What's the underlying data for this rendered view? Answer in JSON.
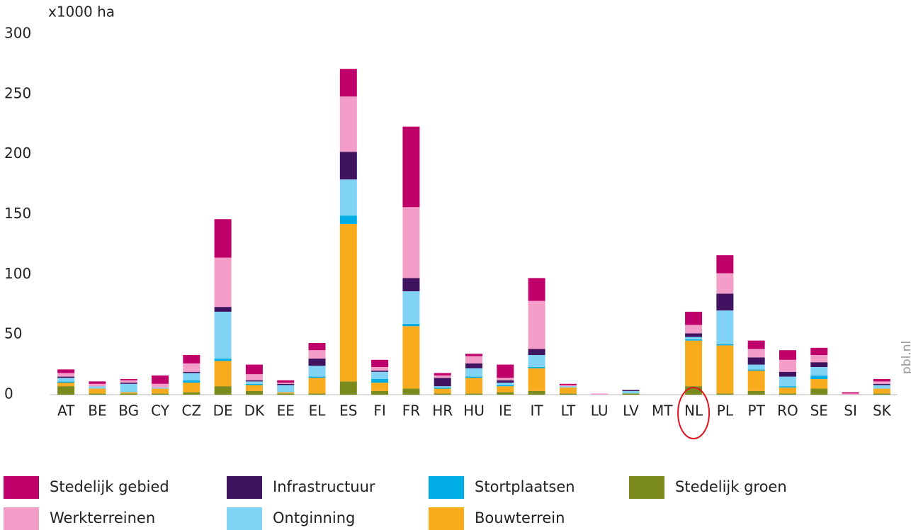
{
  "chart_data": {
    "type": "stacked_bar",
    "y_label": "x1000 ha",
    "source": "pbl.nl",
    "categories": [
      "AT",
      "BE",
      "BG",
      "CY",
      "CZ",
      "DE",
      "DK",
      "EE",
      "EL",
      "ES",
      "FI",
      "FR",
      "HR",
      "HU",
      "IE",
      "IT",
      "LT",
      "LU",
      "LV",
      "MT",
      "NL",
      "PL",
      "PT",
      "RO",
      "SE",
      "SI",
      "SK"
    ],
    "ylim": [
      0,
      300
    ],
    "yticks": [
      0,
      50,
      100,
      150,
      200,
      250,
      300
    ],
    "grid": false,
    "series": [
      {
        "name": "Stedelijk gebied",
        "color": "#c0006a",
        "values": [
          3,
          2,
          1,
          7,
          7,
          32,
          8,
          2,
          6,
          23,
          6,
          67,
          2,
          2,
          11,
          19,
          1,
          0,
          0,
          0,
          11,
          15,
          7,
          8,
          6,
          1,
          2
        ]
      },
      {
        "name": "Werkterreinen",
        "color": "#f29ec8",
        "values": [
          3,
          2,
          2,
          3,
          7,
          41,
          5,
          1,
          7,
          46,
          3,
          59,
          2,
          6,
          2,
          40,
          1,
          1,
          0,
          0,
          7,
          17,
          7,
          10,
          6,
          1,
          2
        ]
      },
      {
        "name": "Infrastructuur",
        "color": "#3f1360",
        "values": [
          1,
          0,
          1,
          0,
          1,
          4,
          1,
          1,
          6,
          23,
          1,
          11,
          7,
          4,
          2,
          5,
          0,
          0,
          1,
          0,
          3,
          14,
          6,
          4,
          4,
          0,
          1
        ]
      },
      {
        "name": "Ontginning",
        "color": "#80d3f4",
        "values": [
          3,
          2,
          7,
          1,
          6,
          39,
          2,
          6,
          9,
          30,
          6,
          27,
          1,
          7,
          2,
          10,
          1,
          0,
          2,
          0,
          2,
          28,
          4,
          8,
          7,
          0,
          3
        ]
      },
      {
        "name": "Stortplaatsen",
        "color": "#00aee6",
        "values": [
          1,
          0,
          0,
          0,
          2,
          2,
          1,
          0,
          1,
          7,
          3,
          2,
          1,
          1,
          1,
          1,
          0,
          0,
          0,
          0,
          1,
          1,
          1,
          1,
          3,
          0,
          0
        ]
      },
      {
        "name": "Bouwterrein",
        "color": "#f9ab1e",
        "values": [
          3,
          4,
          1,
          4,
          8,
          21,
          5,
          1,
          13,
          131,
          7,
          52,
          4,
          13,
          5,
          19,
          5,
          0,
          0,
          0,
          38,
          40,
          17,
          5,
          8,
          0,
          4
        ]
      },
      {
        "name": "Stedelijk groen",
        "color": "#7b8a1c",
        "values": [
          7,
          1,
          1,
          1,
          2,
          7,
          3,
          1,
          1,
          11,
          3,
          5,
          1,
          1,
          2,
          3,
          1,
          0,
          1,
          0,
          7,
          1,
          3,
          1,
          5,
          0,
          1
        ]
      }
    ]
  }
}
